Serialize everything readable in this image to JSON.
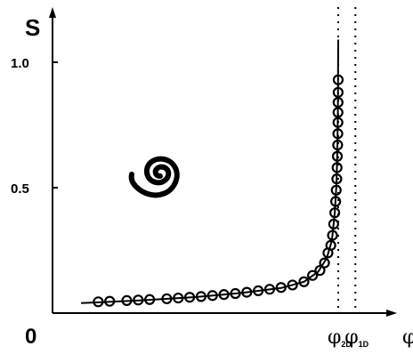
{
  "chart_data": {
    "type": "line",
    "title": "",
    "ylabel": "S",
    "xlabel": "φ",
    "origin_label": "0",
    "yticks": [
      {
        "value": 1.0,
        "label": "1.0"
      },
      {
        "value": 0.5,
        "label": "0.5"
      }
    ],
    "xlim": [
      0,
      0.61
    ],
    "ylim": [
      0,
      1.0
    ],
    "reference_lines": [
      {
        "x": 0.5,
        "base": "φ",
        "sub": "2D"
      },
      {
        "x": 0.53,
        "base": "φ",
        "sub": "1D"
      }
    ],
    "inset_icon": "spiral-icon",
    "grid": false,
    "series": [
      {
        "style": "circle-markers",
        "points": [
          {
            "x": 0.08,
            "y": 0.045
          },
          {
            "x": 0.1,
            "y": 0.047
          },
          {
            "x": 0.13,
            "y": 0.05
          },
          {
            "x": 0.15,
            "y": 0.052
          },
          {
            "x": 0.17,
            "y": 0.054
          },
          {
            "x": 0.2,
            "y": 0.057
          },
          {
            "x": 0.22,
            "y": 0.06
          },
          {
            "x": 0.24,
            "y": 0.063
          },
          {
            "x": 0.26,
            "y": 0.066
          },
          {
            "x": 0.28,
            "y": 0.07
          },
          {
            "x": 0.3,
            "y": 0.074
          },
          {
            "x": 0.32,
            "y": 0.078
          },
          {
            "x": 0.34,
            "y": 0.083
          },
          {
            "x": 0.36,
            "y": 0.089
          },
          {
            "x": 0.38,
            "y": 0.095
          },
          {
            "x": 0.4,
            "y": 0.102
          },
          {
            "x": 0.42,
            "y": 0.112
          },
          {
            "x": 0.44,
            "y": 0.125
          },
          {
            "x": 0.455,
            "y": 0.15
          },
          {
            "x": 0.468,
            "y": 0.17
          },
          {
            "x": 0.476,
            "y": 0.2
          },
          {
            "x": 0.482,
            "y": 0.24
          },
          {
            "x": 0.487,
            "y": 0.27
          },
          {
            "x": 0.49,
            "y": 0.31
          },
          {
            "x": 0.492,
            "y": 0.355
          },
          {
            "x": 0.494,
            "y": 0.4
          },
          {
            "x": 0.4955,
            "y": 0.445
          },
          {
            "x": 0.4965,
            "y": 0.49
          },
          {
            "x": 0.4975,
            "y": 0.535
          },
          {
            "x": 0.498,
            "y": 0.58
          },
          {
            "x": 0.4985,
            "y": 0.625
          },
          {
            "x": 0.499,
            "y": 0.67
          },
          {
            "x": 0.4993,
            "y": 0.715
          },
          {
            "x": 0.4995,
            "y": 0.76
          },
          {
            "x": 0.4996,
            "y": 0.8
          },
          {
            "x": 0.4997,
            "y": 0.84
          },
          {
            "x": 0.4998,
            "y": 0.88
          },
          {
            "x": 0.4999,
            "y": 0.93
          }
        ]
      },
      {
        "style": "solid-line",
        "points": [
          {
            "x": 0.05,
            "y": 0.04
          },
          {
            "x": 0.15,
            "y": 0.05
          },
          {
            "x": 0.25,
            "y": 0.064
          },
          {
            "x": 0.33,
            "y": 0.08
          },
          {
            "x": 0.4,
            "y": 0.1
          },
          {
            "x": 0.44,
            "y": 0.125
          },
          {
            "x": 0.465,
            "y": 0.165
          },
          {
            "x": 0.48,
            "y": 0.22
          },
          {
            "x": 0.489,
            "y": 0.29
          },
          {
            "x": 0.494,
            "y": 0.4
          },
          {
            "x": 0.497,
            "y": 0.52
          },
          {
            "x": 0.4985,
            "y": 0.65
          },
          {
            "x": 0.4993,
            "y": 0.8
          },
          {
            "x": 0.4997,
            "y": 0.95
          },
          {
            "x": 0.5,
            "y": 1.09
          }
        ]
      }
    ]
  }
}
